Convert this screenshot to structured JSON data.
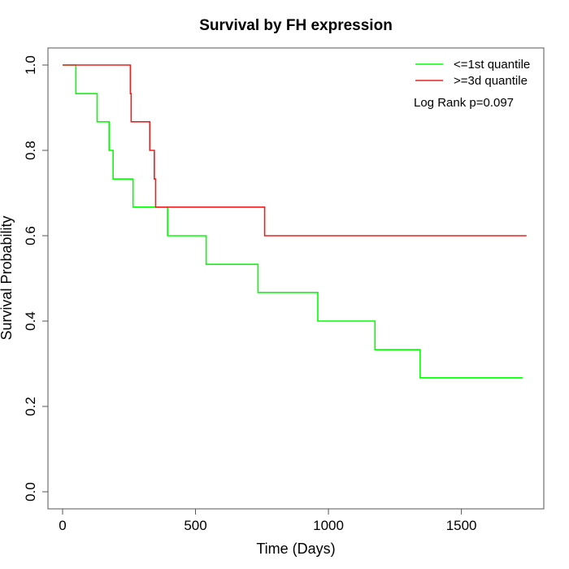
{
  "chart_data": {
    "type": "line",
    "title": "Survival by FH expression",
    "xlabel": "Time (Days)",
    "ylabel": "Survival Probability",
    "xlim": [
      -55,
      1810
    ],
    "ylim": [
      -0.04,
      1.04
    ],
    "x_ticks": [
      0,
      500,
      1000,
      1500
    ],
    "x_tick_labels": [
      "0",
      "500",
      "1000",
      "1500"
    ],
    "y_ticks": [
      0.0,
      0.2,
      0.4,
      0.6,
      0.8,
      1.0
    ],
    "y_tick_labels": [
      "0.0",
      "0.2",
      "0.4",
      "0.6",
      "0.8",
      "1.0"
    ],
    "grid": false,
    "legend_position": "top-right",
    "annotation": "Log Rank p=0.097",
    "series": [
      {
        "name": "<=1st quantile",
        "color": "#00ff00",
        "step": true,
        "x": [
          0,
          50,
          130,
          175,
          190,
          265,
          395,
          540,
          735,
          960,
          1175,
          1345,
          1730
        ],
        "y": [
          1.0,
          0.933,
          0.867,
          0.8,
          0.733,
          0.667,
          0.6,
          0.533,
          0.467,
          0.4,
          0.333,
          0.267,
          0.267
        ]
      },
      {
        "name": ">=3d quantile",
        "color": "#e8211e",
        "step": true,
        "x": [
          0,
          255,
          258,
          325,
          328,
          345,
          350,
          760,
          1745
        ],
        "y": [
          1.0,
          0.933,
          0.867,
          0.867,
          0.8,
          0.733,
          0.667,
          0.6,
          0.6
        ]
      }
    ]
  }
}
